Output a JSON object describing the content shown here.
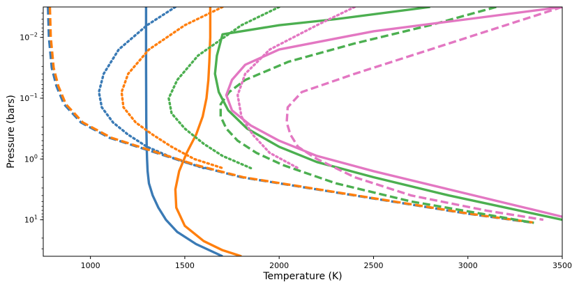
{
  "chart_data": {
    "type": "line",
    "xlabel": "Temperature (K)",
    "ylabel": "Pressure (bars)",
    "xlim": [
      750,
      3500
    ],
    "ylim_log10": [
      1.6,
      -2.5
    ],
    "y_scale": "log",
    "y_inverted": true,
    "grid": false,
    "legend": "none",
    "x_ticks": [
      {
        "value": 1000,
        "label": "1000"
      },
      {
        "value": 1500,
        "label": "1500"
      },
      {
        "value": 2000,
        "label": "2000"
      },
      {
        "value": 2500,
        "label": "2500"
      },
      {
        "value": 3000,
        "label": "3000"
      },
      {
        "value": 3500,
        "label": "3500"
      }
    ],
    "y_ticks": [
      {
        "log10": -2,
        "base": "10",
        "exp": "−2"
      },
      {
        "log10": -1,
        "base": "10",
        "exp": "−1"
      },
      {
        "log10": 0,
        "base": "10",
        "exp": "0"
      },
      {
        "log10": 1,
        "base": "10",
        "exp": "1"
      }
    ],
    "series": [
      {
        "color": "#3a7ab5",
        "dash": "solid",
        "points": [
          [
            1295,
            -2.5
          ],
          [
            1295,
            -1.5
          ],
          [
            1296,
            -0.6
          ],
          [
            1298,
            -0.2
          ],
          [
            1300,
            0.0
          ],
          [
            1303,
            0.2
          ],
          [
            1310,
            0.4
          ],
          [
            1330,
            0.6
          ],
          [
            1360,
            0.8
          ],
          [
            1400,
            1.0
          ],
          [
            1460,
            1.2
          ],
          [
            1560,
            1.4
          ],
          [
            1700,
            1.6
          ]
        ]
      },
      {
        "color": "#3a7ab5",
        "dash": "dashed",
        "points": [
          [
            775,
            -2.5
          ],
          [
            780,
            -2.0
          ],
          [
            795,
            -1.5
          ],
          [
            820,
            -1.2
          ],
          [
            860,
            -0.9
          ],
          [
            950,
            -0.6
          ],
          [
            1100,
            -0.35
          ],
          [
            1300,
            -0.15
          ],
          [
            1550,
            0.1
          ],
          [
            1800,
            0.3
          ],
          [
            2200,
            0.5
          ],
          [
            2600,
            0.7
          ],
          [
            3000,
            0.9
          ],
          [
            3350,
            1.05
          ]
        ]
      },
      {
        "color": "#3a7ab5",
        "dash": "dotted",
        "points": [
          [
            1450,
            -2.5
          ],
          [
            1300,
            -2.2
          ],
          [
            1150,
            -1.8
          ],
          [
            1070,
            -1.4
          ],
          [
            1045,
            -1.1
          ],
          [
            1060,
            -0.85
          ],
          [
            1120,
            -0.6
          ],
          [
            1200,
            -0.4
          ],
          [
            1300,
            -0.2
          ],
          [
            1450,
            0.0
          ],
          [
            1600,
            0.15
          ]
        ]
      },
      {
        "color": "#ff7f0e",
        "dash": "solid",
        "points": [
          [
            1635,
            -2.5
          ],
          [
            1635,
            -2.0
          ],
          [
            1630,
            -1.6
          ],
          [
            1625,
            -1.3
          ],
          [
            1615,
            -1.0
          ],
          [
            1595,
            -0.7
          ],
          [
            1560,
            -0.4
          ],
          [
            1510,
            -0.1
          ],
          [
            1470,
            0.2
          ],
          [
            1450,
            0.5
          ],
          [
            1455,
            0.8
          ],
          [
            1500,
            1.1
          ],
          [
            1600,
            1.35
          ],
          [
            1700,
            1.5
          ],
          [
            1800,
            1.6
          ]
        ]
      },
      {
        "color": "#ff7f0e",
        "dash": "dashed",
        "points": [
          [
            785,
            -2.5
          ],
          [
            790,
            -2.0
          ],
          [
            805,
            -1.5
          ],
          [
            830,
            -1.2
          ],
          [
            870,
            -0.9
          ],
          [
            960,
            -0.6
          ],
          [
            1110,
            -0.35
          ],
          [
            1310,
            -0.15
          ],
          [
            1560,
            0.1
          ],
          [
            1810,
            0.3
          ],
          [
            2210,
            0.5
          ],
          [
            2610,
            0.7
          ],
          [
            3010,
            0.9
          ],
          [
            3360,
            1.05
          ]
        ]
      },
      {
        "color": "#ff7f0e",
        "dash": "dotted",
        "points": [
          [
            1700,
            -2.5
          ],
          [
            1500,
            -2.2
          ],
          [
            1310,
            -1.8
          ],
          [
            1200,
            -1.4
          ],
          [
            1165,
            -1.1
          ],
          [
            1175,
            -0.85
          ],
          [
            1240,
            -0.6
          ],
          [
            1330,
            -0.4
          ],
          [
            1430,
            -0.2
          ],
          [
            1550,
            0.0
          ],
          [
            1700,
            0.15
          ]
        ]
      },
      {
        "color": "#4caf50",
        "dash": "solid",
        "points": [
          [
            2800,
            -2.5
          ],
          [
            2300,
            -2.3
          ],
          [
            2000,
            -2.2
          ],
          [
            1700,
            -2.05
          ],
          [
            1670,
            -1.7
          ],
          [
            1660,
            -1.4
          ],
          [
            1680,
            -1.1
          ],
          [
            1730,
            -0.8
          ],
          [
            1830,
            -0.5
          ],
          [
            2000,
            -0.2
          ],
          [
            2200,
            0.05
          ],
          [
            2500,
            0.3
          ],
          [
            2900,
            0.6
          ],
          [
            3500,
            1.0
          ]
        ]
      },
      {
        "color": "#4caf50",
        "dash": "dashed",
        "points": [
          [
            3150,
            -2.5
          ],
          [
            2800,
            -2.2
          ],
          [
            2400,
            -1.9
          ],
          [
            2050,
            -1.6
          ],
          [
            1820,
            -1.3
          ],
          [
            1735,
            -1.1
          ],
          [
            1690,
            -0.9
          ],
          [
            1690,
            -0.7
          ],
          [
            1720,
            -0.5
          ],
          [
            1780,
            -0.3
          ],
          [
            1880,
            -0.1
          ],
          [
            2020,
            0.1
          ],
          [
            2300,
            0.4
          ],
          [
            2700,
            0.7
          ],
          [
            3350,
            1.05
          ]
        ]
      },
      {
        "color": "#4caf50",
        "dash": "dotted",
        "points": [
          [
            2000,
            -2.5
          ],
          [
            1800,
            -2.2
          ],
          [
            1570,
            -1.7
          ],
          [
            1460,
            -1.3
          ],
          [
            1415,
            -1.0
          ],
          [
            1430,
            -0.75
          ],
          [
            1500,
            -0.5
          ],
          [
            1600,
            -0.25
          ],
          [
            1700,
            -0.05
          ],
          [
            1850,
            0.15
          ]
        ]
      },
      {
        "color": "#e377c2",
        "dash": "solid",
        "points": [
          [
            3500,
            -2.5
          ],
          [
            3000,
            -2.3
          ],
          [
            2500,
            -2.1
          ],
          [
            2000,
            -1.8
          ],
          [
            1820,
            -1.55
          ],
          [
            1750,
            -1.3
          ],
          [
            1720,
            -1.05
          ],
          [
            1750,
            -0.8
          ],
          [
            1850,
            -0.55
          ],
          [
            2000,
            -0.3
          ],
          [
            2200,
            -0.05
          ],
          [
            2500,
            0.2
          ],
          [
            2900,
            0.5
          ],
          [
            3300,
            0.8
          ],
          [
            3500,
            0.95
          ]
        ]
      },
      {
        "color": "#e377c2",
        "dash": "dashed",
        "points": [
          [
            3500,
            -2.5
          ],
          [
            3200,
            -2.2
          ],
          [
            2800,
            -1.8
          ],
          [
            2400,
            -1.4
          ],
          [
            2120,
            -1.1
          ],
          [
            2045,
            -0.85
          ],
          [
            2040,
            -0.6
          ],
          [
            2060,
            -0.4
          ],
          [
            2100,
            -0.2
          ],
          [
            2200,
            0.0
          ],
          [
            2400,
            0.3
          ],
          [
            2700,
            0.6
          ],
          [
            3100,
            0.85
          ],
          [
            3400,
            1.0
          ]
        ]
      },
      {
        "color": "#e377c2",
        "dash": "dotted",
        "points": [
          [
            2400,
            -2.5
          ],
          [
            2200,
            -2.2
          ],
          [
            1950,
            -1.8
          ],
          [
            1820,
            -1.4
          ],
          [
            1780,
            -1.05
          ],
          [
            1800,
            -0.7
          ],
          [
            1860,
            -0.4
          ],
          [
            1950,
            -0.1
          ],
          [
            2100,
            0.15
          ]
        ]
      }
    ]
  }
}
